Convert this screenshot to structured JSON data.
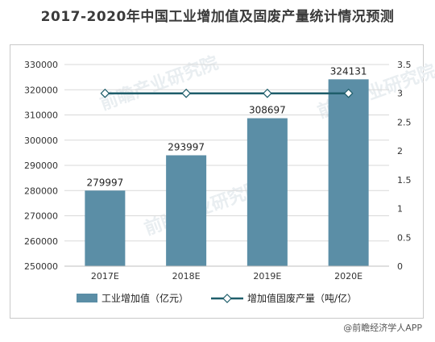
{
  "title": "2017-2020年中国工业增加值及固废产量统计情况预测",
  "source": "@前瞻经济学人APP",
  "watermarks": [
    "前瞻产业研究院",
    "前瞻产业研究院",
    "前瞻产业研究院"
  ],
  "colors": {
    "bar": "#5b8ea6",
    "line": "#1f5e6b",
    "marker_fill": "#ffffff",
    "grid": "#d9d9d9"
  },
  "chart_data": {
    "type": "bar",
    "categories": [
      "2017E",
      "2018E",
      "2019E",
      "2020E"
    ],
    "series": [
      {
        "name": "工业增加值（亿元）",
        "type": "bar",
        "axis": "left",
        "values": [
          279997,
          293997,
          308697,
          324131
        ],
        "labels": [
          "279997",
          "293997",
          "308697",
          "324131"
        ]
      },
      {
        "name": "增加值固废产量（吨/亿）",
        "type": "line",
        "axis": "right",
        "values": [
          3,
          3,
          3,
          3
        ]
      }
    ],
    "y_left": {
      "min": 250000,
      "max": 330000,
      "step": 10000,
      "ticks": [
        "250000",
        "260000",
        "270000",
        "280000",
        "290000",
        "300000",
        "310000",
        "320000",
        "330000"
      ]
    },
    "y_right": {
      "min": 0,
      "max": 3.5,
      "step": 0.5,
      "ticks": [
        "0",
        "0.5",
        "1",
        "1.5",
        "2",
        "2.5",
        "3",
        "3.5"
      ]
    },
    "grid": true,
    "legend_position": "bottom"
  }
}
